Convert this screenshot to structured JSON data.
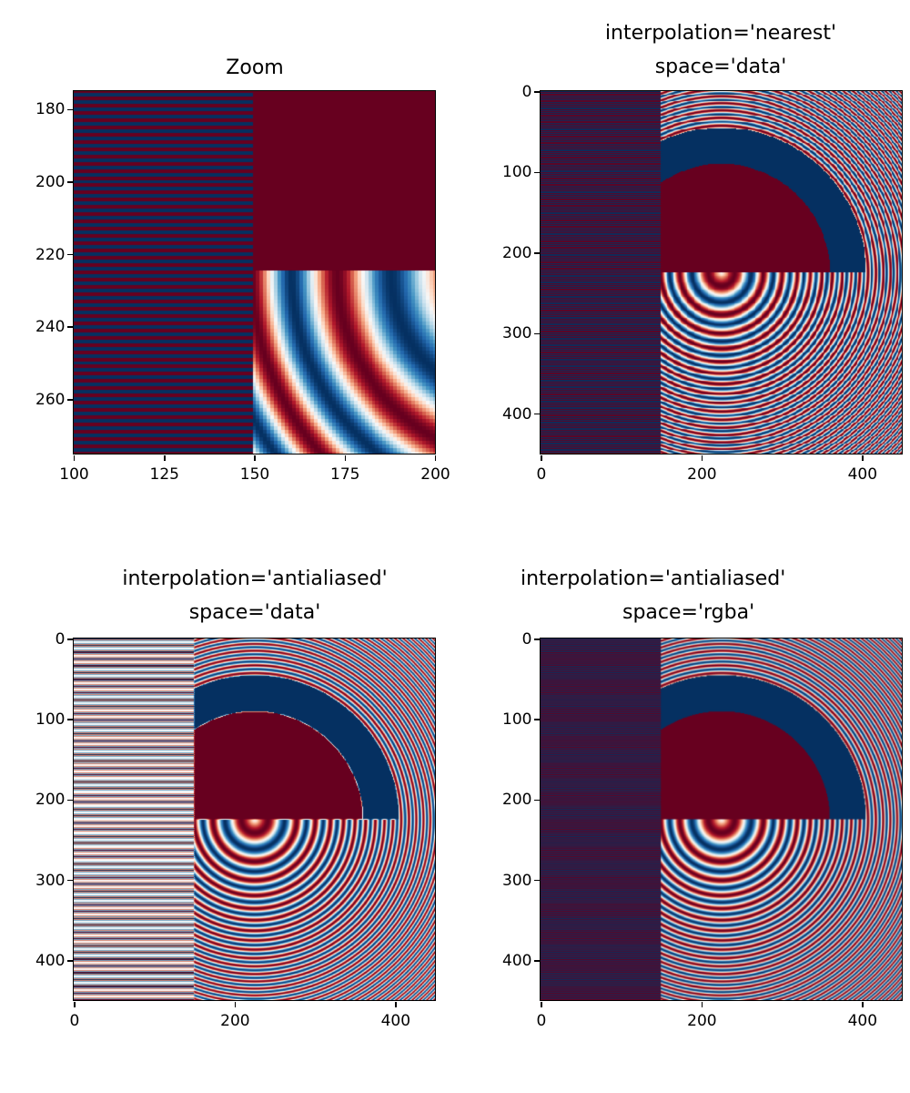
{
  "chart_data": [
    {
      "type": "heatmap",
      "title": "Zoom",
      "interpolation": "nearest",
      "colormap": "RdBu_r",
      "value_range": [
        -1,
        1
      ],
      "xlim": [
        100,
        200
      ],
      "ylim": [
        275,
        175
      ],
      "xticks": [
        "100",
        "125",
        "150",
        "175",
        "200"
      ],
      "yticks": [
        "180",
        "200",
        "220",
        "240",
        "260"
      ]
    },
    {
      "type": "heatmap",
      "title_line1": "interpolation='nearest'",
      "title_line2": "space='data'",
      "interpolation": "nearest",
      "colormap": "RdBu_r",
      "value_range": [
        -1,
        1
      ],
      "xlim": [
        -0.5,
        449.5
      ],
      "ylim": [
        449.5,
        -0.5
      ],
      "xticks": [
        "0",
        "200",
        "400"
      ],
      "yticks": [
        "0",
        "100",
        "200",
        "300",
        "400"
      ]
    },
    {
      "type": "heatmap",
      "title_line1": "interpolation='antialiased'",
      "title_line2": "space='data'",
      "interpolation": "antialiased",
      "colormap": "RdBu_r",
      "value_range": [
        -1,
        1
      ],
      "xlim": [
        -0.5,
        449.5
      ],
      "ylim": [
        449.5,
        -0.5
      ],
      "xticks": [
        "0",
        "200",
        "400"
      ],
      "yticks": [
        "0",
        "100",
        "200",
        "300",
        "400"
      ]
    },
    {
      "type": "heatmap",
      "title_line1": "interpolation='antialiased'",
      "title_line2": "space='rgba'",
      "interpolation": "antialiased",
      "colormap": "RdBu_r",
      "value_range": [
        -1,
        1
      ],
      "xlim": [
        -0.5,
        449.5
      ],
      "ylim": [
        449.5,
        -0.5
      ],
      "xticks": [
        "0",
        "200",
        "400"
      ],
      "yticks": [
        "0",
        "100",
        "200",
        "300",
        "400"
      ]
    }
  ],
  "image": {
    "size": 450,
    "stripe_columns": 150,
    "f0": 5,
    "k": 100,
    "inner_radius": 0.3,
    "outer_radius": 0.4
  },
  "colors": {
    "low": "#053061",
    "mid": "#f7f7f7",
    "high": "#67001f"
  }
}
